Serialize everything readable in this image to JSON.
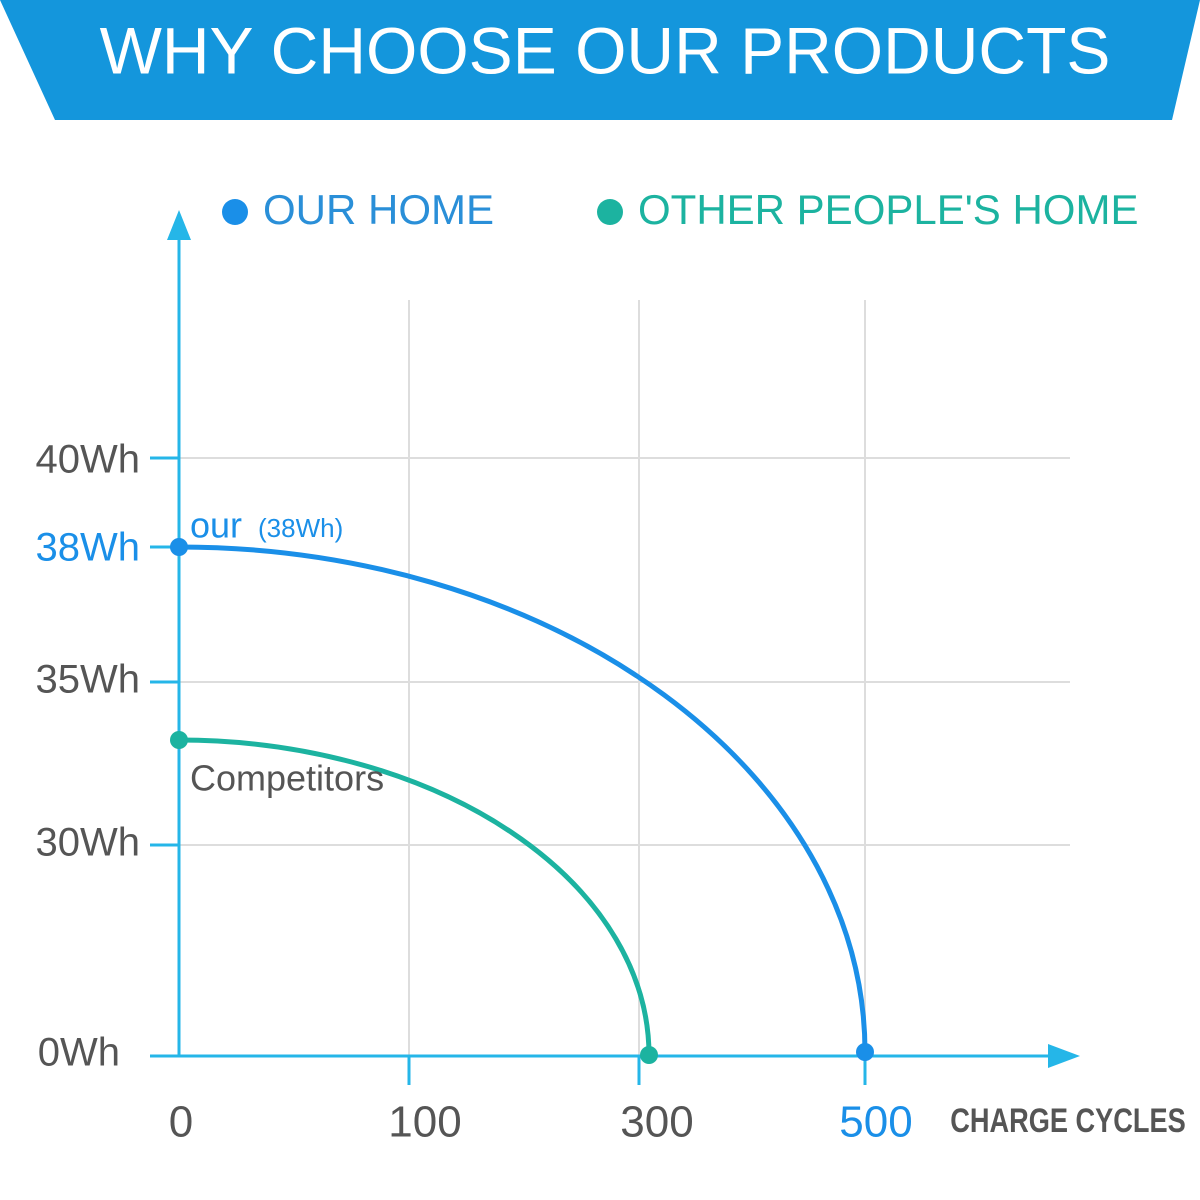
{
  "banner": {
    "title": "WHY CHOOSE OUR PRODUCTS"
  },
  "legend": [
    {
      "label": "OUR HOME",
      "color": "#1a8fe8"
    },
    {
      "label": "OTHER PEOPLE'S HOME",
      "color": "#1cb3a0"
    }
  ],
  "y_axis": {
    "ticks": [
      "40Wh",
      "38Wh",
      "35Wh",
      "30Wh",
      "0Wh"
    ]
  },
  "x_axis": {
    "ticks": [
      "0",
      "100",
      "300",
      "500"
    ],
    "label": "CHARGE CYCLES"
  },
  "annotations": {
    "ours_word": "our",
    "ours_value": "(38Wh)",
    "competitors": "Competitors"
  }
}
